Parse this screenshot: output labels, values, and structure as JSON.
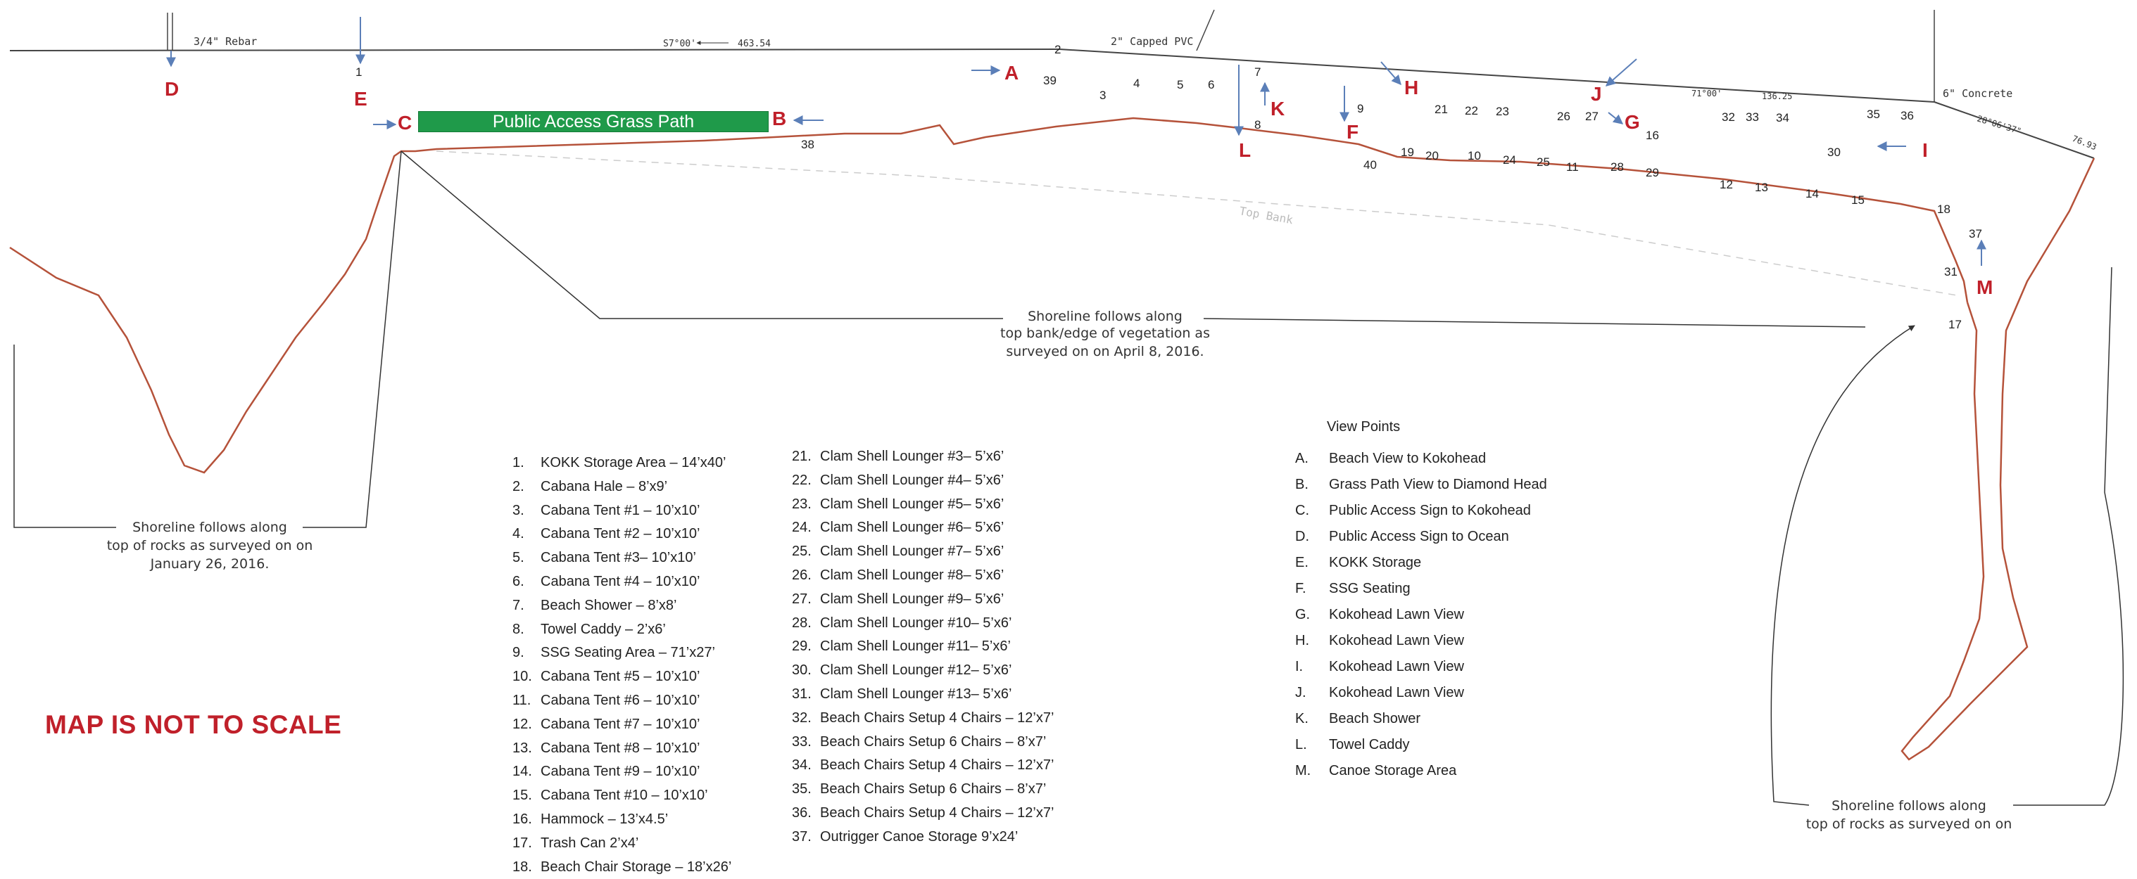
{
  "survey_labels": {
    "rebar": "3/4\" Rebar",
    "bearing_top_1": "S7°00'",
    "distance_top_1": "463.54",
    "capped_pvc": "2\" Capped PVC",
    "concrete": "6\" Concrete",
    "bearing_top_2": "71°00'",
    "distance_top_2": "136.25",
    "bearing_right": "28°06'37\"",
    "distance_right": "76.93",
    "top_bank": "Top Bank"
  },
  "grass_path_label": "Public Access Grass Path",
  "shoreline_notes": {
    "center": [
      "Shoreline follows along",
      "top bank/edge of vegetation as",
      "surveyed on on April 8, 2016."
    ],
    "left": [
      "Shoreline follows along",
      "top of rocks as surveyed on on",
      "January 26, 2016."
    ],
    "right": [
      "Shoreline follows along",
      "top of rocks as surveyed on on"
    ]
  },
  "point_numbers": [
    "1",
    "2",
    "3",
    "4",
    "5",
    "6",
    "7",
    "8",
    "9",
    "10",
    "11",
    "12",
    "13",
    "14",
    "15",
    "16",
    "17",
    "18",
    "19",
    "20",
    "21",
    "22",
    "23",
    "24",
    "25",
    "26",
    "27",
    "28",
    "29",
    "30",
    "31",
    "32",
    "33",
    "34",
    "35",
    "36",
    "37",
    "38",
    "39",
    "40"
  ],
  "view_letters": [
    "A",
    "B",
    "C",
    "D",
    "E",
    "F",
    "G",
    "H",
    "I",
    "J",
    "K",
    "L",
    "M"
  ],
  "not_to_scale": "MAP IS NOT TO SCALE",
  "legend": [
    {
      "num": "1.",
      "text": "KOKK Storage Area – 14’x40’"
    },
    {
      "num": "2.",
      "text": "Cabana Hale – 8’x9’"
    },
    {
      "num": "3.",
      "text": "Cabana Tent #1 – 10’x10’"
    },
    {
      "num": "4.",
      "text": "Cabana Tent #2 – 10’x10’"
    },
    {
      "num": "5.",
      "text": "Cabana Tent #3– 10’x10’"
    },
    {
      "num": "6.",
      "text": "Cabana Tent #4 – 10’x10’"
    },
    {
      "num": "7.",
      "text": "Beach Shower – 8’x8’"
    },
    {
      "num": "8.",
      "text": "Towel Caddy – 2’x6’"
    },
    {
      "num": "9.",
      "text": "SSG Seating Area – 71’x27’"
    },
    {
      "num": "10.",
      "text": "Cabana Tent #5 – 10’x10’"
    },
    {
      "num": "11.",
      "text": "Cabana Tent #6 – 10’x10’"
    },
    {
      "num": "12.",
      "text": "Cabana Tent #7 – 10’x10’"
    },
    {
      "num": "13.",
      "text": "Cabana Tent #8 – 10’x10’"
    },
    {
      "num": "14.",
      "text": "Cabana Tent #9 – 10’x10’"
    },
    {
      "num": "15.",
      "text": "Cabana Tent #10 – 10’x10’"
    },
    {
      "num": "16.",
      "text": "Hammock – 13’x4.5’"
    },
    {
      "num": "17.",
      "text": "Trash Can 2’x4’"
    },
    {
      "num": "18.",
      "text": "Beach Chair Storage – 18’x26’"
    }
  ],
  "legend_2": [
    {
      "num": "21.",
      "text": "Clam Shell Lounger #3– 5’x6’"
    },
    {
      "num": "22.",
      "text": "Clam Shell Lounger #4– 5’x6’"
    },
    {
      "num": "23.",
      "text": "Clam Shell Lounger #5– 5’x6’"
    },
    {
      "num": "24.",
      "text": "Clam Shell Lounger #6– 5’x6’"
    },
    {
      "num": "25.",
      "text": "Clam Shell Lounger #7– 5’x6’"
    },
    {
      "num": "26.",
      "text": "Clam Shell Lounger #8– 5’x6’"
    },
    {
      "num": "27.",
      "text": "Clam Shell Lounger #9– 5’x6’"
    },
    {
      "num": "28.",
      "text": "Clam Shell Lounger #10– 5’x6’"
    },
    {
      "num": "29.",
      "text": "Clam Shell Lounger #11– 5’x6’"
    },
    {
      "num": "30.",
      "text": "Clam Shell Lounger #12– 5’x6’"
    },
    {
      "num": "31.",
      "text": "Clam Shell Lounger #13– 5’x6’"
    },
    {
      "num": "32.",
      "text": "Beach Chairs Setup 4 Chairs – 12’x7’"
    },
    {
      "num": "33.",
      "text": "Beach Chairs  Setup  6 Chairs – 8’x7’"
    },
    {
      "num": "34.",
      "text": "Beach Chairs Setup 4 Chairs – 12’x7’"
    },
    {
      "num": "35.",
      "text": "Beach Chairs  Setup  6 Chairs – 8’x7’"
    },
    {
      "num": "36.",
      "text": "Beach Chairs Setup 4 Chairs – 12’x7’"
    },
    {
      "num": "37.",
      "text": "Outrigger Canoe Storage 9’x24’"
    }
  ],
  "view_points": {
    "title": "View Points",
    "items": [
      {
        "num": "A.",
        "text": "Beach View to Kokohead"
      },
      {
        "num": "B.",
        "text": "Grass Path View to Diamond Head"
      },
      {
        "num": "C.",
        "text": "Public Access Sign to Kokohead"
      },
      {
        "num": "D.",
        "text": "Public Access Sign to Ocean"
      },
      {
        "num": "E.",
        "text": "KOKK Storage"
      },
      {
        "num": "F.",
        "text": "SSG Seating"
      },
      {
        "num": "G.",
        "text": "Kokohead Lawn View"
      },
      {
        "num": "H.",
        "text": "Kokohead Lawn View"
      },
      {
        "num": "I.",
        "text": "Kokohead Lawn View"
      },
      {
        "num": "J.",
        "text": "Kokohead Lawn View"
      },
      {
        "num": "K.",
        "text": "Beach Shower"
      },
      {
        "num": "L.",
        "text": "Towel Caddy"
      },
      {
        "num": "M.",
        "text": "Canoe Storage Area"
      }
    ]
  },
  "colors": {
    "shoreline": "#b5523a",
    "grass_path": "#1f9a4a",
    "view_letter": "#c0202a",
    "arrow": "#5b7fb8"
  }
}
